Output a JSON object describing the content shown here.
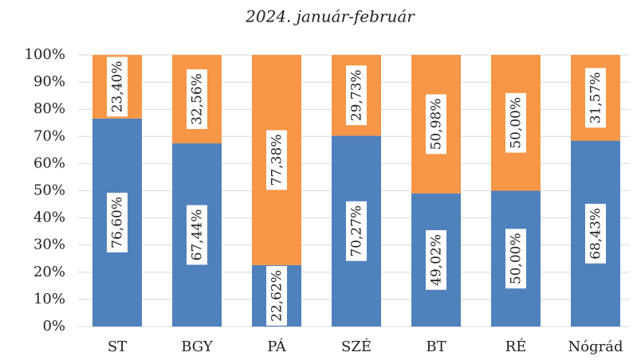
{
  "chart_data": {
    "type": "stacked_bar",
    "title": "2024. január-február",
    "categories": [
      "ST",
      "BGY",
      "PÁ",
      "SZÉ",
      "BT",
      "RÉ",
      "Nógrád"
    ],
    "series": [
      {
        "color": "#4f81bd",
        "values": [
          76.6,
          67.44,
          22.62,
          70.27,
          49.02,
          50.0,
          68.43
        ],
        "value_labels": [
          "76,60%",
          "67,44%",
          "22,62%",
          "70,27%",
          "49,02%",
          "50,00%",
          "68,43%"
        ]
      },
      {
        "color": "#f79646",
        "values": [
          23.4,
          32.56,
          77.38,
          29.73,
          50.98,
          50.0,
          31.57
        ],
        "value_labels": [
          "23,40%",
          "32,56%",
          "77,38%",
          "29,73%",
          "50,98%",
          "50,00%",
          "31,57%"
        ]
      }
    ],
    "ylim": [
      0,
      100
    ],
    "yticks": [
      {
        "value": 0,
        "label": "0%"
      },
      {
        "value": 10,
        "label": "10%"
      },
      {
        "value": 20,
        "label": "20%"
      },
      {
        "value": 30,
        "label": "30%"
      },
      {
        "value": 40,
        "label": "40%"
      },
      {
        "value": 50,
        "label": "50%"
      },
      {
        "value": 60,
        "label": "60%"
      },
      {
        "value": 70,
        "label": "70%"
      },
      {
        "value": 80,
        "label": "80%"
      },
      {
        "value": 90,
        "label": "90%"
      },
      {
        "value": 100,
        "label": "100%"
      }
    ],
    "grid": true
  }
}
